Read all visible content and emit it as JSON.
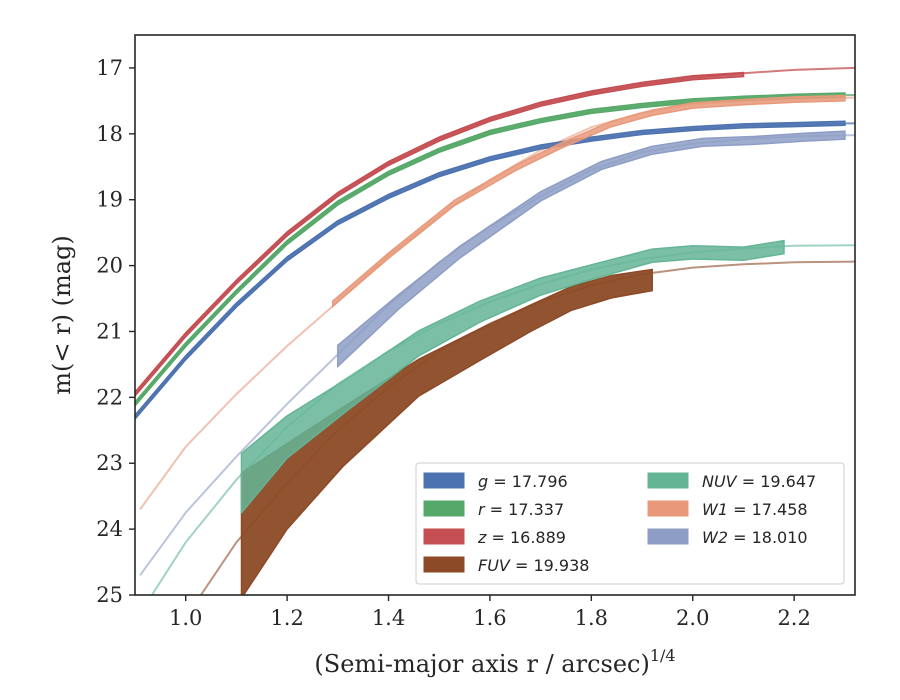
{
  "chart_data": {
    "type": "line",
    "xlabel": "(Semi-major axis r / arcsec)",
    "xlabel_superscript": "1/4",
    "ylabel": "m(< r) (mag)",
    "xlim": [
      0.9,
      2.32
    ],
    "ylim": [
      25,
      16.5
    ],
    "y_inverted": true,
    "xticks": [
      1.0,
      1.2,
      1.4,
      1.6,
      1.8,
      2.0,
      2.2
    ],
    "xtick_labels": [
      "1.0",
      "1.2",
      "1.4",
      "1.6",
      "1.8",
      "2.0",
      "2.2"
    ],
    "yticks": [
      17,
      18,
      19,
      20,
      21,
      22,
      23,
      24,
      25
    ],
    "ytick_labels": [
      "17",
      "18",
      "19",
      "20",
      "21",
      "22",
      "23",
      "24",
      "25"
    ],
    "grid": false,
    "legend_position": "lower-right",
    "legend_columns": 2,
    "series": [
      {
        "name": "g = 17.796",
        "sym": "g",
        "value": "17.796",
        "color": "#4c72b0",
        "model": {
          "x": [
            0.9,
            1.0,
            1.1,
            1.2,
            1.3,
            1.4,
            1.5,
            1.6,
            1.7,
            1.8,
            1.9,
            2.0,
            2.1,
            2.2,
            2.32
          ],
          "y": [
            22.3,
            21.4,
            20.6,
            19.9,
            19.35,
            18.95,
            18.62,
            18.38,
            18.2,
            18.08,
            17.98,
            17.92,
            17.88,
            17.86,
            17.84
          ]
        },
        "band": {
          "x": [
            0.9,
            1.0,
            1.1,
            1.2,
            1.3,
            1.4,
            1.5,
            1.6,
            1.7,
            1.8,
            1.9,
            2.0,
            2.1,
            2.2,
            2.3
          ],
          "y": [
            22.3,
            21.4,
            20.6,
            19.9,
            19.35,
            18.95,
            18.62,
            18.38,
            18.2,
            18.08,
            17.98,
            17.92,
            17.88,
            17.86,
            17.84
          ],
          "err": [
            0.03,
            0.03,
            0.03,
            0.03,
            0.03,
            0.03,
            0.03,
            0.03,
            0.03,
            0.03,
            0.03,
            0.03,
            0.03,
            0.03,
            0.03
          ]
        }
      },
      {
        "name": "r = 17.337",
        "sym": "r",
        "value": "17.337",
        "color": "#55a868",
        "model": {
          "x": [
            0.9,
            1.0,
            1.1,
            1.2,
            1.3,
            1.4,
            1.5,
            1.6,
            1.7,
            1.8,
            1.9,
            2.0,
            2.1,
            2.2,
            2.32
          ],
          "y": [
            22.1,
            21.2,
            20.4,
            19.65,
            19.05,
            18.6,
            18.25,
            17.98,
            17.8,
            17.66,
            17.57,
            17.5,
            17.46,
            17.43,
            17.41
          ]
        },
        "band": {
          "x": [
            0.9,
            1.0,
            1.1,
            1.2,
            1.3,
            1.4,
            1.5,
            1.6,
            1.7,
            1.8,
            1.9,
            2.0,
            2.1,
            2.2,
            2.3
          ],
          "y": [
            22.1,
            21.2,
            20.4,
            19.65,
            19.05,
            18.6,
            18.25,
            17.98,
            17.8,
            17.66,
            17.57,
            17.5,
            17.46,
            17.43,
            17.41
          ],
          "err": [
            0.03,
            0.03,
            0.03,
            0.03,
            0.03,
            0.03,
            0.03,
            0.03,
            0.03,
            0.03,
            0.03,
            0.03,
            0.03,
            0.03,
            0.03
          ]
        }
      },
      {
        "name": "z = 16.889",
        "sym": "z",
        "value": "16.889",
        "color": "#c44e52",
        "model": {
          "x": [
            0.9,
            1.0,
            1.1,
            1.2,
            1.3,
            1.4,
            1.5,
            1.6,
            1.7,
            1.8,
            1.9,
            2.0,
            2.1,
            2.2,
            2.32
          ],
          "y": [
            21.95,
            21.05,
            20.25,
            19.52,
            18.92,
            18.45,
            18.08,
            17.78,
            17.55,
            17.38,
            17.25,
            17.15,
            17.08,
            17.03,
            17.0
          ]
        },
        "band": {
          "x": [
            0.9,
            1.0,
            1.1,
            1.2,
            1.3,
            1.4,
            1.5,
            1.6,
            1.7,
            1.8,
            1.9,
            2.0,
            2.1
          ],
          "y": [
            21.95,
            21.05,
            20.25,
            19.52,
            18.92,
            18.45,
            18.08,
            17.78,
            17.55,
            17.38,
            17.25,
            17.15,
            17.1
          ],
          "err": [
            0.03,
            0.03,
            0.03,
            0.03,
            0.03,
            0.03,
            0.03,
            0.03,
            0.03,
            0.03,
            0.03,
            0.03,
            0.03
          ]
        }
      },
      {
        "name": "FUV = 19.938",
        "sym": "FUV",
        "value": "19.938",
        "color": "#8c4a26",
        "model": {
          "x": [
            1.03,
            1.1,
            1.2,
            1.3,
            1.4,
            1.5,
            1.6,
            1.7,
            1.8,
            1.9,
            2.0,
            2.1,
            2.2,
            2.32
          ],
          "y": [
            25.0,
            24.2,
            23.3,
            22.5,
            21.85,
            21.3,
            20.88,
            20.55,
            20.3,
            20.13,
            20.03,
            19.98,
            19.95,
            19.94
          ]
        },
        "band": {
          "x": [
            1.11,
            1.2,
            1.31,
            1.46,
            1.58,
            1.68,
            1.76,
            1.84,
            1.92
          ],
          "y": [
            24.1,
            23.35,
            22.6,
            21.7,
            21.2,
            20.8,
            20.5,
            20.32,
            20.22
          ],
          "err": [
            0.95,
            0.65,
            0.45,
            0.28,
            0.24,
            0.2,
            0.18,
            0.17,
            0.16
          ]
        }
      },
      {
        "name": "NUV = 19.647",
        "sym": "NUV",
        "value": "19.647",
        "color": "#64b596",
        "model": {
          "x": [
            0.9,
            1.0,
            1.1,
            1.2,
            1.3,
            1.4,
            1.5,
            1.6,
            1.7,
            1.8,
            1.9,
            2.0,
            2.1,
            2.2,
            2.32
          ],
          "y": [
            25.4,
            24.2,
            23.25,
            22.45,
            21.8,
            21.3,
            20.88,
            20.55,
            20.28,
            20.06,
            19.9,
            19.8,
            19.74,
            19.7,
            19.69
          ]
        },
        "band": {
          "x": [
            1.11,
            1.2,
            1.32,
            1.46,
            1.58,
            1.7,
            1.8,
            1.92,
            2.0,
            2.1,
            2.18
          ],
          "y": [
            23.3,
            22.6,
            21.95,
            21.18,
            20.7,
            20.32,
            20.1,
            19.85,
            19.8,
            19.82,
            19.72
          ],
          "err": [
            0.45,
            0.32,
            0.24,
            0.19,
            0.16,
            0.13,
            0.11,
            0.1,
            0.1,
            0.1,
            0.1
          ]
        }
      },
      {
        "name": "W1 = 17.458",
        "sym": "W1",
        "value": "17.458",
        "color": "#e8997a",
        "model": {
          "x": [
            0.91,
            1.0,
            1.1,
            1.2,
            1.3,
            1.4,
            1.5,
            1.6,
            1.7,
            1.8,
            1.9,
            2.0,
            2.1,
            2.2,
            2.32
          ],
          "y": [
            23.7,
            22.75,
            21.95,
            21.22,
            20.55,
            19.85,
            19.25,
            18.7,
            18.25,
            17.9,
            17.68,
            17.55,
            17.5,
            17.47,
            17.45
          ]
        },
        "band": {
          "x": [
            1.29,
            1.4,
            1.53,
            1.65,
            1.74,
            1.84,
            1.92,
            2.0,
            2.1,
            2.2,
            2.3
          ],
          "y": [
            20.58,
            19.85,
            19.05,
            18.52,
            18.18,
            17.85,
            17.68,
            17.57,
            17.52,
            17.48,
            17.46
          ],
          "err": [
            0.04,
            0.04,
            0.04,
            0.04,
            0.04,
            0.04,
            0.04,
            0.04,
            0.04,
            0.04,
            0.04
          ]
        }
      },
      {
        "name": "W2 = 18.010",
        "sym": "W2",
        "value": "18.010",
        "color": "#8d9dc6",
        "model": {
          "x": [
            0.91,
            1.0,
            1.1,
            1.2,
            1.3,
            1.4,
            1.5,
            1.6,
            1.7,
            1.8,
            1.9,
            2.0,
            2.1,
            2.2,
            2.32
          ],
          "y": [
            24.7,
            23.75,
            22.9,
            22.1,
            21.35,
            20.6,
            19.95,
            19.4,
            18.95,
            18.55,
            18.28,
            18.15,
            18.08,
            18.04,
            18.02
          ]
        },
        "band": {
          "x": [
            1.3,
            1.42,
            1.54,
            1.7,
            1.82,
            1.92,
            2.02,
            2.12,
            2.22,
            2.3
          ],
          "y": [
            21.37,
            20.55,
            19.8,
            18.95,
            18.48,
            18.25,
            18.13,
            18.1,
            18.05,
            18.02
          ],
          "err": [
            0.16,
            0.11,
            0.09,
            0.07,
            0.06,
            0.06,
            0.06,
            0.06,
            0.06,
            0.06
          ]
        }
      }
    ]
  }
}
